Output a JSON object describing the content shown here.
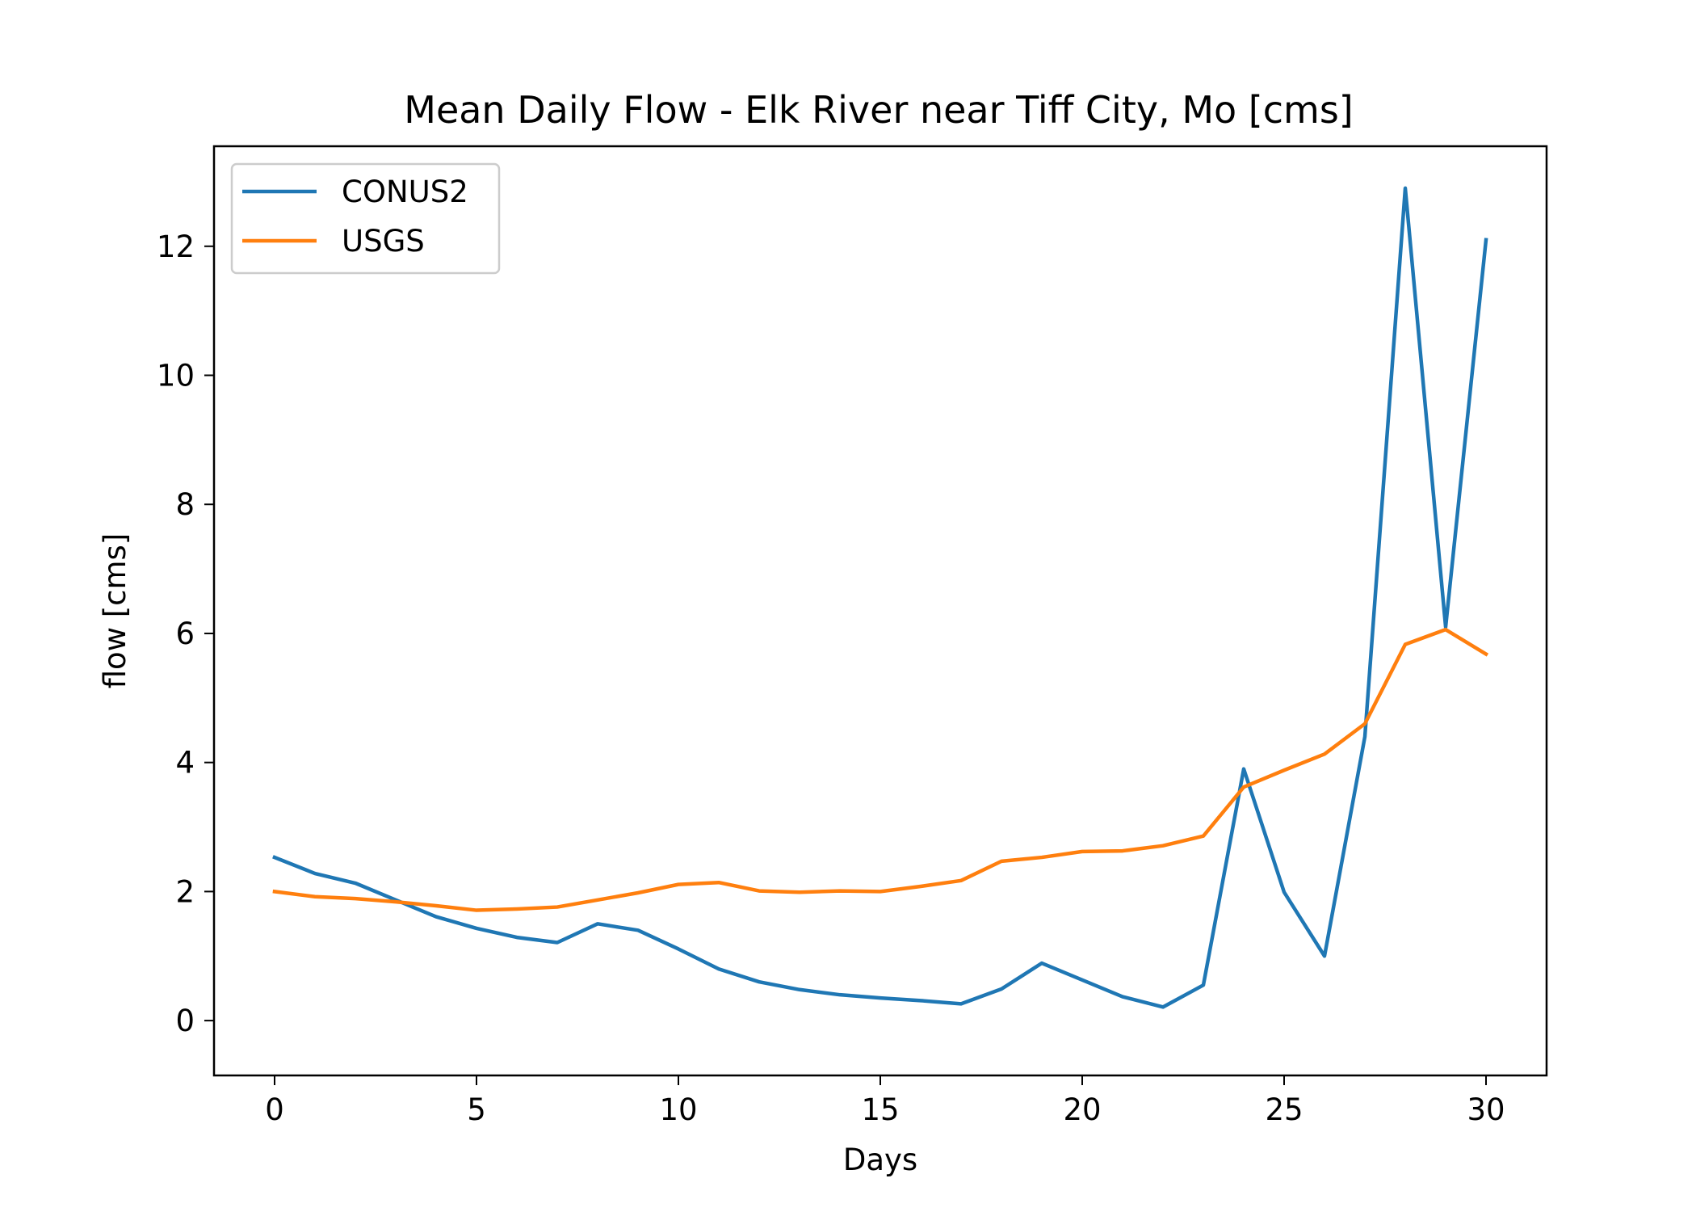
{
  "chart_data": {
    "type": "line",
    "title": "Mean Daily Flow - Elk River near Tiff City, Mo [cms]",
    "xlabel": "Days",
    "ylabel": "flow [cms]",
    "xlim": [
      -1.5,
      31.5
    ],
    "ylim": [
      -0.85,
      13.55
    ],
    "xticks": [
      0,
      5,
      10,
      15,
      20,
      25,
      30
    ],
    "yticks": [
      0,
      2,
      4,
      6,
      8,
      10,
      12
    ],
    "grid": false,
    "legend": "top-left",
    "x": [
      0,
      1,
      2,
      3,
      4,
      5,
      6,
      7,
      8,
      9,
      10,
      11,
      12,
      13,
      14,
      15,
      16,
      17,
      18,
      19,
      20,
      21,
      22,
      23,
      24,
      25,
      26,
      27,
      28,
      29,
      30
    ],
    "series": [
      {
        "name": "CONUS2",
        "color": "#1f77b4",
        "values": [
          2.53,
          2.28,
          2.13,
          1.87,
          1.61,
          1.43,
          1.29,
          1.21,
          1.5,
          1.4,
          1.11,
          0.8,
          0.6,
          0.48,
          0.4,
          0.35,
          0.31,
          0.26,
          0.49,
          0.89,
          0.63,
          0.37,
          0.21,
          0.55,
          3.9,
          1.99,
          1.0,
          4.4,
          12.9,
          6.1,
          12.1
        ]
      },
      {
        "name": "USGS",
        "color": "#ff7f0e",
        "values": [
          2.0,
          1.92,
          1.89,
          1.84,
          1.78,
          1.71,
          1.73,
          1.76,
          1.87,
          1.98,
          2.11,
          2.14,
          2.01,
          1.99,
          2.01,
          2.0,
          2.08,
          2.17,
          2.47,
          2.53,
          2.62,
          2.63,
          2.71,
          2.86,
          3.62,
          3.88,
          4.13,
          4.6,
          5.83,
          6.06,
          5.68
        ]
      }
    ]
  }
}
